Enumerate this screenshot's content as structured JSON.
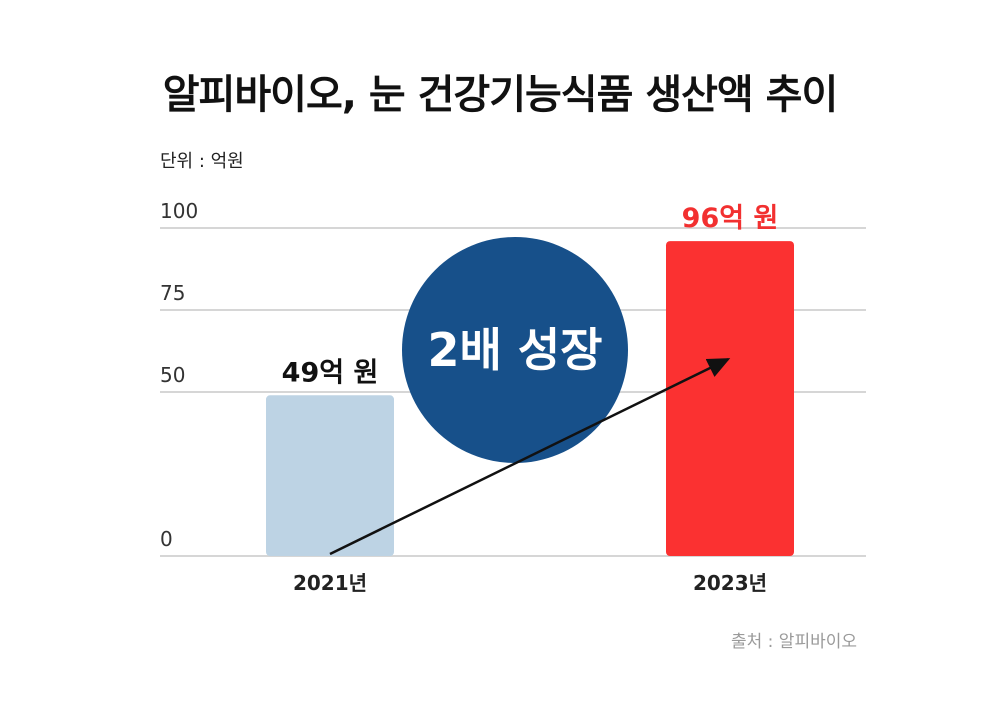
{
  "title": "알피바이오, 눈 건강기능식품 생산액 추이",
  "unit_label": "단위 : 억원",
  "source_label": "출처 : 알피바이오",
  "badge": {
    "text": "2배 성장",
    "color": "#17508a"
  },
  "chart_data": {
    "type": "bar",
    "title": "알피바이오, 눈 건강기능식품 생산액 추이",
    "categories": [
      "2021년",
      "2023년"
    ],
    "values": [
      49,
      96
    ],
    "data_labels": [
      "49억 원",
      "96억 원"
    ],
    "bar_colors": [
      "#bdd3e4",
      "#fb3131"
    ],
    "label_colors": [
      "#111111",
      "#f23030"
    ],
    "ylabel": "억원",
    "ylim": [
      0,
      100
    ],
    "yticks": [
      0,
      50,
      75,
      100
    ],
    "grid": true,
    "arrow": {
      "from": "2021년",
      "to": "2023년"
    }
  }
}
